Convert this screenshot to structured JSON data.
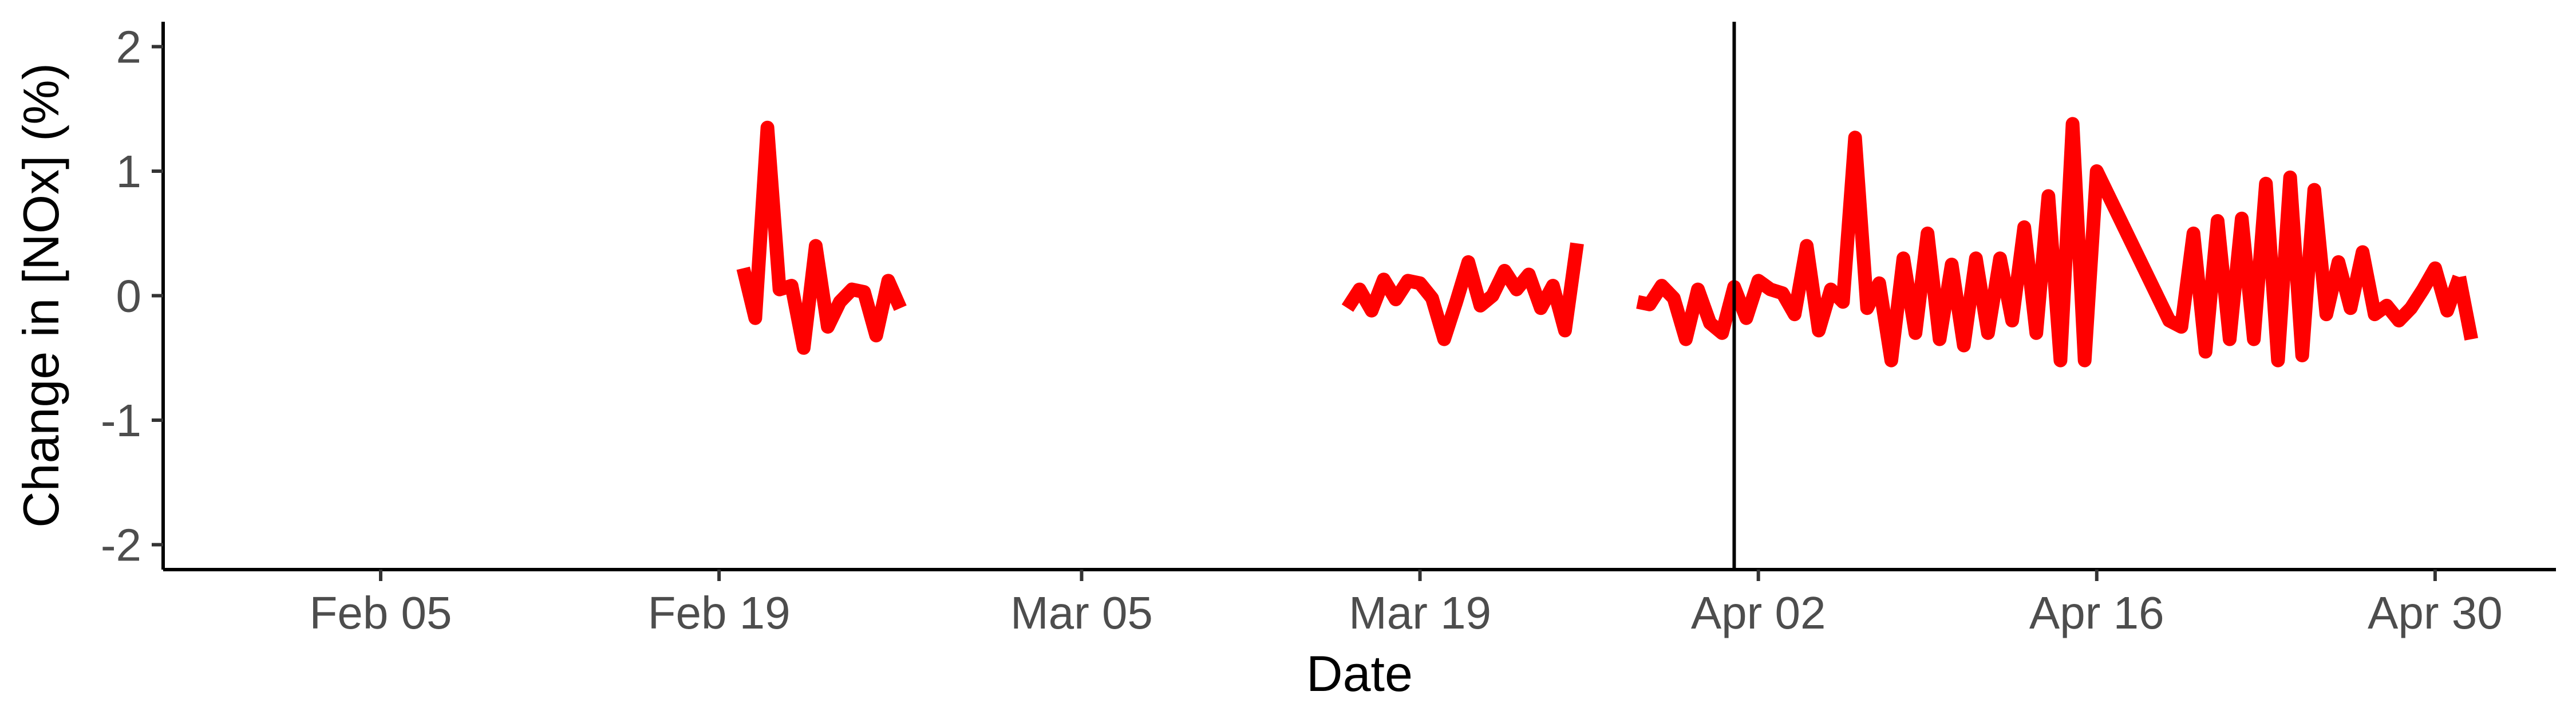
{
  "chart_data": {
    "type": "line",
    "title": "",
    "xlabel": "Date",
    "ylabel": "Change in [NOx] (%)",
    "x_type": "date",
    "xlim": [
      "2020-01-27",
      "2020-05-05"
    ],
    "ylim": [
      -2.2,
      2.2
    ],
    "x_ticks": [
      {
        "date": "2020-02-05",
        "label": "Feb 05"
      },
      {
        "date": "2020-02-19",
        "label": "Feb 19"
      },
      {
        "date": "2020-03-05",
        "label": "Mar 05"
      },
      {
        "date": "2020-03-19",
        "label": "Mar 19"
      },
      {
        "date": "2020-04-02",
        "label": "Apr 02"
      },
      {
        "date": "2020-04-16",
        "label": "Apr 16"
      },
      {
        "date": "2020-04-30",
        "label": "Apr 30"
      }
    ],
    "y_ticks": [
      -2,
      -1,
      0,
      1,
      2
    ],
    "y_tick_labels": [
      "-2",
      "-1",
      "0",
      "1",
      "2"
    ],
    "grid": false,
    "legend": "none",
    "line_color": "#ff0000",
    "vline": {
      "date": "2020-04-01",
      "color": "#000000"
    },
    "segments": [
      {
        "x": [
          "2020-02-20 00:00",
          "2020-02-20 12:00",
          "2020-02-21 00:00",
          "2020-02-21 12:00",
          "2020-02-22 00:00",
          "2020-02-22 12:00",
          "2020-02-23 00:00",
          "2020-02-23 12:00",
          "2020-02-24 00:00",
          "2020-02-24 12:00",
          "2020-02-25 00:00",
          "2020-02-25 12:00",
          "2020-02-26 00:00",
          "2020-02-26 12:00",
          "2020-02-27 00:00"
        ],
        "y": [
          0.22,
          -0.18,
          1.35,
          0.05,
          0.08,
          -0.42,
          0.4,
          -0.25,
          -0.05,
          0.05,
          0.03,
          -0.32,
          0.12,
          -0.1,
          null
        ]
      },
      {
        "x": [
          "2020-03-16 00:00",
          "2020-03-16 12:00",
          "2020-03-17 00:00",
          "2020-03-17 12:00",
          "2020-03-18 00:00",
          "2020-03-18 12:00",
          "2020-03-19 00:00",
          "2020-03-19 12:00",
          "2020-03-20 00:00",
          "2020-03-20 12:00",
          "2020-03-21 00:00",
          "2020-03-21 12:00",
          "2020-03-22 00:00",
          "2020-03-22 12:00",
          "2020-03-23 00:00",
          "2020-03-23 12:00",
          "2020-03-24 00:00",
          "2020-03-24 12:00",
          "2020-03-25 00:00",
          "2020-03-25 12:00",
          "2020-03-26 00:00",
          "2020-03-26 12:00",
          "2020-03-27 00:00"
        ],
        "y": [
          -0.1,
          0.05,
          -0.12,
          0.13,
          -0.03,
          0.12,
          0.1,
          -0.02,
          -0.35,
          -0.05,
          0.27,
          -0.08,
          0.0,
          0.2,
          0.05,
          0.17,
          -0.1,
          0.08,
          -0.28,
          0.42,
          null,
          null,
          null
        ]
      },
      {
        "x": [
          "2020-03-28 00:00",
          "2020-03-28 12:00",
          "2020-03-29 00:00",
          "2020-03-29 12:00",
          "2020-03-30 00:00",
          "2020-03-30 12:00",
          "2020-03-31 00:00",
          "2020-03-31 12:00",
          "2020-04-01 00:00",
          "2020-04-01 12:00",
          "2020-04-02 00:00",
          "2020-04-02 12:00",
          "2020-04-03 00:00",
          "2020-04-03 12:00",
          "2020-04-04 00:00",
          "2020-04-04 12:00",
          "2020-04-05 00:00",
          "2020-04-05 12:00",
          "2020-04-06 00:00",
          "2020-04-06 12:00",
          "2020-04-07 00:00",
          "2020-04-07 12:00",
          "2020-04-08 00:00",
          "2020-04-08 12:00",
          "2020-04-09 00:00",
          "2020-04-09 12:00",
          "2020-04-10 00:00",
          "2020-04-10 12:00",
          "2020-04-11 00:00",
          "2020-04-11 12:00",
          "2020-04-12 00:00",
          "2020-04-12 12:00",
          "2020-04-13 00:00",
          "2020-04-13 12:00",
          "2020-04-14 00:00",
          "2020-04-14 12:00",
          "2020-04-15 00:00",
          "2020-04-15 12:00",
          "2020-04-16 00:00",
          "2020-04-19 00:00",
          "2020-04-19 12:00",
          "2020-04-20 00:00",
          "2020-04-20 12:00",
          "2020-04-21 00:00",
          "2020-04-21 12:00",
          "2020-04-22 00:00",
          "2020-04-22 12:00",
          "2020-04-23 00:00",
          "2020-04-23 12:00",
          "2020-04-24 00:00",
          "2020-04-24 12:00",
          "2020-04-25 00:00",
          "2020-04-25 12:00",
          "2020-04-26 00:00",
          "2020-04-26 12:00",
          "2020-04-27 00:00",
          "2020-04-27 12:00",
          "2020-04-28 00:00",
          "2020-04-28 12:00",
          "2020-04-29 00:00",
          "2020-04-29 12:00",
          "2020-04-30 00:00",
          "2020-04-30 12:00",
          "2020-05-01 00:00"
        ],
        "y": [
          -0.05,
          -0.07,
          0.08,
          -0.02,
          -0.35,
          0.05,
          -0.22,
          -0.3,
          0.07,
          -0.18,
          0.12,
          0.05,
          0.02,
          -0.15,
          0.4,
          -0.28,
          0.05,
          -0.05,
          1.27,
          -0.1,
          0.1,
          -0.52,
          0.3,
          -0.3,
          0.5,
          -0.35,
          0.25,
          -0.4,
          0.3,
          -0.3,
          0.3,
          -0.2,
          0.55,
          -0.3,
          0.8,
          -0.52,
          1.38,
          -0.52,
          1.0,
          -0.2,
          -0.25,
          0.5,
          -0.45,
          0.6,
          -0.35,
          0.62,
          -0.35,
          0.9,
          -0.52,
          0.95,
          -0.48,
          0.85,
          -0.15,
          0.27,
          -0.1,
          0.35,
          -0.15,
          -0.08,
          -0.2,
          -0.1,
          0.05,
          0.22,
          -0.12,
          0.15
        ]
      },
      {
        "x": [
          "2020-05-01 00:00",
          "2020-05-01 12:00"
        ],
        "y": [
          0.15,
          -0.35
        ]
      }
    ]
  }
}
